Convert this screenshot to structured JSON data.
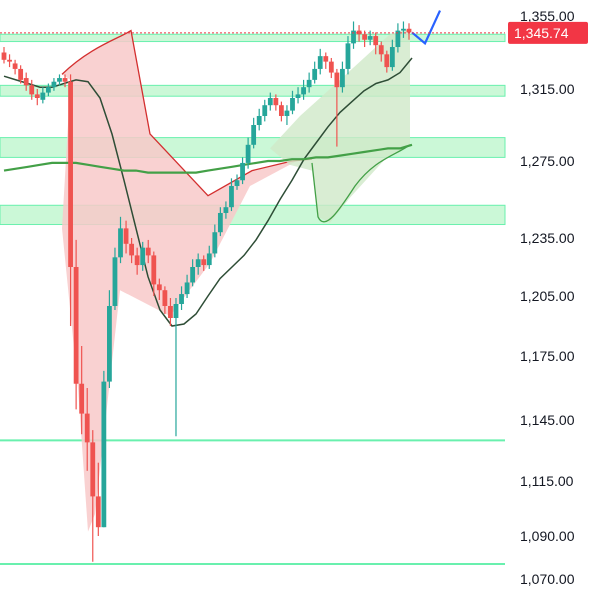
{
  "chart_data": {
    "type": "candlestick",
    "title": "",
    "xlabel": "",
    "ylabel": "",
    "ylim": [
      1070,
      1355
    ],
    "y_ticks": [
      {
        "value": 1355,
        "label": "1,355.00"
      },
      {
        "value": 1315,
        "label": "1,315.00"
      },
      {
        "value": 1275,
        "label": "1,275.00"
      },
      {
        "value": 1235,
        "label": "1,235.00"
      },
      {
        "value": 1205,
        "label": "1,205.00"
      },
      {
        "value": 1175,
        "label": "1,175.00"
      },
      {
        "value": 1145,
        "label": "1,145.00"
      },
      {
        "value": 1115,
        "label": "1,115.00"
      },
      {
        "value": 1090,
        "label": "1,090.00"
      },
      {
        "value": 1070,
        "label": "1,070.00"
      }
    ],
    "last_price": {
      "value": 1345.74,
      "label": "1,345.74"
    },
    "zones": [
      {
        "from": 1341,
        "to": 1345
      },
      {
        "from": 1311,
        "to": 1317
      },
      {
        "from": 1277,
        "to": 1288
      },
      {
        "from": 1242,
        "to": 1252
      }
    ],
    "levels": [
      1135,
      1077
    ],
    "candles": [
      [
        1335,
        1331,
        1338,
        1329
      ],
      [
        1331,
        1330,
        1334,
        1327
      ],
      [
        1329,
        1326,
        1331,
        1323
      ],
      [
        1326,
        1320,
        1328,
        1318
      ],
      [
        1321,
        1317,
        1324,
        1314
      ],
      [
        1317,
        1312,
        1320,
        1309
      ],
      [
        1312,
        1310,
        1315,
        1306
      ],
      [
        1309,
        1313,
        1316,
        1307
      ],
      [
        1313,
        1316,
        1318,
        1311
      ],
      [
        1316,
        1319,
        1321,
        1314
      ],
      [
        1319,
        1321,
        1323,
        1317
      ],
      [
        1321,
        1319,
        1323,
        1316
      ],
      [
        1319,
        1220,
        1323,
        1190
      ],
      [
        1220,
        1162,
        1234,
        1150
      ],
      [
        1162,
        1148,
        1180,
        1138
      ],
      [
        1148,
        1134,
        1160,
        1120
      ],
      [
        1134,
        1108,
        1140,
        1078
      ],
      [
        1108,
        1094,
        1124,
        1090
      ],
      [
        1094,
        1163,
        1168,
        1094
      ],
      [
        1163,
        1200,
        1208,
        1160
      ],
      [
        1200,
        1225,
        1230,
        1198
      ],
      [
        1225,
        1240,
        1246,
        1222
      ],
      [
        1240,
        1232,
        1244,
        1227
      ],
      [
        1232,
        1226,
        1235,
        1222
      ],
      [
        1226,
        1221,
        1230,
        1216
      ],
      [
        1221,
        1230,
        1233,
        1218
      ],
      [
        1230,
        1226,
        1234,
        1222
      ],
      [
        1226,
        1211,
        1228,
        1205
      ],
      [
        1211,
        1208,
        1214,
        1203
      ],
      [
        1208,
        1200,
        1210,
        1196
      ],
      [
        1200,
        1194,
        1204,
        1190
      ],
      [
        1194,
        1201,
        1204,
        1137
      ],
      [
        1201,
        1206,
        1210,
        1198
      ],
      [
        1206,
        1212,
        1216,
        1204
      ],
      [
        1212,
        1220,
        1224,
        1210
      ],
      [
        1220,
        1224,
        1227,
        1216
      ],
      [
        1224,
        1221,
        1226,
        1218
      ],
      [
        1221,
        1227,
        1231,
        1219
      ],
      [
        1227,
        1238,
        1242,
        1225
      ],
      [
        1238,
        1248,
        1251,
        1236
      ],
      [
        1248,
        1251,
        1254,
        1245
      ],
      [
        1251,
        1262,
        1266,
        1249
      ],
      [
        1262,
        1265,
        1268,
        1260
      ],
      [
        1265,
        1274,
        1277,
        1263
      ],
      [
        1274,
        1284,
        1288,
        1271
      ],
      [
        1284,
        1295,
        1299,
        1282
      ],
      [
        1295,
        1300,
        1304,
        1292
      ],
      [
        1300,
        1306,
        1309,
        1297
      ],
      [
        1306,
        1310,
        1313,
        1303
      ],
      [
        1310,
        1306,
        1312,
        1303
      ],
      [
        1306,
        1300,
        1308,
        1297
      ],
      [
        1300,
        1303,
        1306,
        1295
      ],
      [
        1303,
        1310,
        1314,
        1301
      ],
      [
        1310,
        1312,
        1316,
        1307
      ],
      [
        1312,
        1316,
        1320,
        1309
      ],
      [
        1316,
        1320,
        1324,
        1313
      ],
      [
        1320,
        1326,
        1330,
        1318
      ],
      [
        1326,
        1333,
        1337,
        1323
      ],
      [
        1333,
        1330,
        1335,
        1326
      ],
      [
        1330,
        1324,
        1332,
        1321
      ],
      [
        1324,
        1316,
        1326,
        1283
      ],
      [
        1316,
        1326,
        1330,
        1313
      ],
      [
        1326,
        1340,
        1344,
        1323
      ],
      [
        1340,
        1347,
        1352,
        1337
      ],
      [
        1347,
        1345,
        1350,
        1341
      ],
      [
        1345,
        1342,
        1347,
        1338
      ],
      [
        1342,
        1344,
        1347,
        1339
      ],
      [
        1344,
        1339,
        1346,
        1334
      ],
      [
        1339,
        1334,
        1341,
        1330
      ],
      [
        1334,
        1327,
        1336,
        1324
      ],
      [
        1327,
        1338,
        1342,
        1325
      ],
      [
        1338,
        1347,
        1351,
        1335
      ],
      [
        1347,
        1348,
        1352,
        1343
      ],
      [
        1348,
        1346,
        1351,
        1342
      ]
    ],
    "series": [
      {
        "values": [
          1322,
          1320,
          1318,
          1316,
          1316,
          1318,
          1320,
          1319,
          1310,
          1290,
          1265,
          1240,
          1215,
          1198,
          1190,
          1191,
          1196,
          1205,
          1214,
          1220,
          1226,
          1234,
          1244,
          1255,
          1265,
          1276,
          1285,
          1294,
          1302,
          1308,
          1314,
          1318,
          1320,
          1324,
          1332
        ]
      },
      {
        "values": [
          1270,
          1271,
          1272,
          1273,
          1274,
          1274,
          1274,
          1273,
          1272,
          1271,
          1270,
          1270,
          1269,
          1269,
          1269,
          1269,
          1269,
          1270,
          1271,
          1272,
          1273,
          1274,
          1275,
          1275,
          1276,
          1276,
          1277,
          1277,
          1278,
          1279,
          1280,
          1281,
          1282,
          1282,
          1284
        ]
      }
    ],
    "annotation": "up-arrow"
  },
  "colors": {
    "up": "#26a69a",
    "down": "#ef5350",
    "zone_fill": "#b9f6ca",
    "zone_line": "#69f0ae",
    "bear_fill": "#f8c9c9",
    "bear_line": "#d32f2f",
    "bull_fill": "#cfe9c8",
    "bull_line": "#43a047",
    "fast_ma": "#2e4d36",
    "slow_ma": "#43a047",
    "last_price_bg": "#f23645",
    "arrow": "#2962ff"
  }
}
